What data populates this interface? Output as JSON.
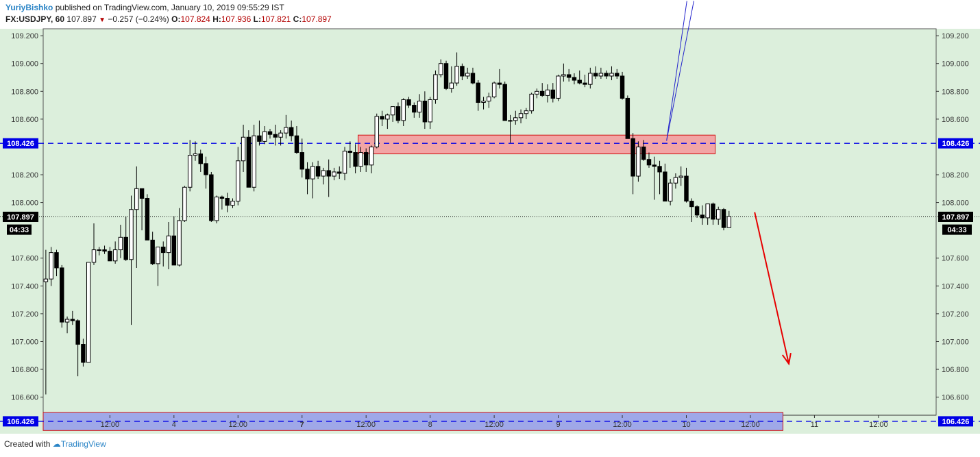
{
  "header": {
    "author": "YuriyBishko",
    "published_text": "published on TradingView.com, January 10, 2019 09:55:29 IST",
    "symbol": "FX:USDJPY, 60",
    "last": "107.897",
    "change": "−0.257 (−0.24%)",
    "o_label": "O:",
    "o": "107.824",
    "h_label": "H:",
    "h": "107.936",
    "l_label": "L:",
    "l": "107.821",
    "c_label": "C:",
    "c": "107.897"
  },
  "footer": {
    "created_with": "Created with",
    "brand": "TradingView"
  },
  "colors": {
    "plot_bg": "#dcefdc",
    "resistance_line": "#0000e6",
    "resistance_zone": "#f2a5a5",
    "support_zone": "#9fa8e8",
    "arrow": "#e60000",
    "up_line": "#2222cc",
    "tag_blue": "#0000e6",
    "tag_black": "#000000"
  },
  "chart_data": {
    "type": "candlestick",
    "symbol": "FX:USDJPY",
    "timeframe": "60",
    "ylim": [
      106.47,
      109.25
    ],
    "y_ticks": [
      "109.200",
      "109.000",
      "108.800",
      "108.600",
      "108.200",
      "108.000",
      "107.600",
      "107.400",
      "107.200",
      "107.000",
      "106.800",
      "106.600"
    ],
    "y_tick_values": [
      109.2,
      109.0,
      108.8,
      108.6,
      108.2,
      108.0,
      107.6,
      107.4,
      107.2,
      107.0,
      106.8,
      106.6
    ],
    "x_tick_labels": [
      "12:00",
      "4",
      "12:00",
      "7",
      "12:00",
      "8",
      "12:00",
      "9",
      "12:00",
      "10",
      "12:00",
      "11",
      "12:00"
    ],
    "x_tick_hours": [
      12,
      24,
      36,
      48,
      60,
      72,
      84,
      96,
      108,
      120,
      132,
      144,
      156
    ],
    "x_bold": [
      "7"
    ],
    "xlim_hours": [
      -0.5,
      166.8
    ],
    "levels": [
      {
        "label": "108.426",
        "value": 108.426,
        "style": "dashed"
      },
      {
        "label": "106.426",
        "value": 106.426,
        "style": "dashed"
      }
    ],
    "last_price": {
      "label": "107.897",
      "value": 107.897
    },
    "countdown": {
      "label": "04:33",
      "value": 107.81
    },
    "zones": [
      {
        "name": "resistance-zone",
        "from_hour": 58.5,
        "to_hour": 125.4,
        "low": 108.35,
        "high": 108.485
      },
      {
        "name": "support-zone",
        "from_hour": -0.5,
        "to_hour": 138.1,
        "low": 106.36,
        "high": 106.49
      }
    ],
    "annotations": [
      {
        "type": "arrow",
        "name": "forecast-arrow",
        "from": [
          132.8,
          107.93
        ],
        "to": [
          139.2,
          106.84
        ]
      },
      {
        "type": "line",
        "name": "trend-line-1",
        "from": [
          116.3,
          108.445
        ],
        "to": [
          121.4,
          109.45
        ]
      },
      {
        "type": "line",
        "name": "trend-line-2",
        "from": [
          116.3,
          108.445
        ],
        "to": [
          120.1,
          109.45
        ]
      }
    ],
    "candles": [
      [
        0.0,
        107.43,
        107.66,
        106.62,
        107.45
      ],
      [
        1.0,
        107.45,
        107.68,
        107.4,
        107.64
      ],
      [
        2.0,
        107.64,
        107.66,
        107.47,
        107.53
      ],
      [
        3.0,
        107.53,
        107.55,
        107.1,
        107.14
      ],
      [
        4.0,
        107.14,
        107.18,
        107.06,
        107.16
      ],
      [
        5.0,
        107.16,
        107.22,
        107.12,
        107.15
      ],
      [
        6.0,
        107.15,
        107.16,
        106.75,
        106.98
      ],
      [
        7.0,
        106.98,
        107.02,
        106.82,
        106.85
      ],
      [
        8.0,
        106.85,
        107.57,
        106.85,
        107.57
      ],
      [
        9.0,
        107.57,
        107.85,
        107.55,
        107.66
      ],
      [
        10.0,
        107.66,
        107.68,
        107.62,
        107.66
      ],
      [
        11.0,
        107.66,
        107.69,
        107.63,
        107.65
      ],
      [
        12.0,
        107.65,
        107.68,
        107.58,
        107.58
      ],
      [
        13.0,
        107.58,
        107.72,
        107.56,
        107.66
      ],
      [
        14.0,
        107.66,
        107.84,
        107.6,
        107.75
      ],
      [
        15.0,
        107.75,
        107.9,
        107.58,
        107.59
      ],
      [
        16.0,
        107.59,
        108.05,
        107.12,
        107.95
      ],
      [
        17.0,
        107.95,
        108.26,
        107.53,
        108.1
      ],
      [
        18.0,
        108.1,
        108.1,
        107.8,
        108.03
      ],
      [
        19.0,
        108.03,
        108.06,
        107.73,
        107.73
      ],
      [
        20.0,
        107.73,
        107.79,
        107.55,
        107.56
      ],
      [
        21.0,
        107.56,
        107.66,
        107.4,
        107.68
      ],
      [
        22.0,
        107.68,
        107.72,
        107.54,
        107.64
      ],
      [
        23.0,
        107.64,
        107.86,
        107.52,
        107.76
      ],
      [
        24.0,
        107.76,
        107.9,
        107.55,
        107.55
      ],
      [
        25.0,
        107.55,
        107.96,
        107.54,
        107.87
      ],
      [
        26.0,
        107.87,
        108.12,
        107.86,
        108.11
      ],
      [
        27.0,
        108.11,
        108.45,
        108.08,
        108.34
      ],
      [
        28.0,
        108.34,
        108.44,
        108.3,
        108.35
      ],
      [
        29.0,
        108.35,
        108.38,
        108.22,
        108.28
      ],
      [
        30.0,
        108.28,
        108.33,
        108.1,
        108.2
      ],
      [
        31.0,
        108.2,
        108.22,
        107.86,
        107.87
      ],
      [
        32.0,
        107.87,
        108.05,
        107.85,
        108.04
      ],
      [
        33.0,
        108.04,
        108.05,
        107.95,
        108.03
      ],
      [
        34.0,
        108.03,
        108.07,
        107.93,
        107.98
      ],
      [
        35.0,
        107.98,
        108.03,
        107.96,
        108.01
      ],
      [
        36.0,
        108.01,
        108.4,
        107.98,
        108.3
      ],
      [
        37.0,
        108.3,
        108.56,
        108.22,
        108.47
      ],
      [
        38.0,
        108.47,
        108.52,
        108.11,
        108.11
      ],
      [
        39.0,
        108.11,
        108.56,
        108.08,
        108.48
      ],
      [
        40.0,
        108.48,
        108.59,
        108.41,
        108.44
      ],
      [
        41.0,
        108.44,
        108.55,
        108.42,
        108.51
      ],
      [
        42.0,
        108.51,
        108.53,
        108.46,
        108.49
      ],
      [
        43.0,
        108.49,
        108.56,
        108.41,
        108.47
      ],
      [
        44.0,
        108.47,
        108.52,
        108.41,
        108.5
      ],
      [
        45.0,
        108.5,
        108.63,
        108.46,
        108.54
      ],
      [
        46.0,
        108.54,
        108.59,
        108.44,
        108.48
      ],
      [
        47.0,
        108.48,
        108.55,
        108.35,
        108.36
      ],
      [
        48.0,
        108.36,
        108.46,
        108.18,
        108.24
      ],
      [
        49.0,
        108.24,
        108.29,
        108.06,
        108.17
      ],
      [
        50.0,
        108.17,
        108.29,
        108.03,
        108.26
      ],
      [
        51.0,
        108.26,
        108.3,
        108.17,
        108.19
      ],
      [
        52.0,
        108.19,
        108.25,
        108.13,
        108.23
      ],
      [
        53.0,
        108.23,
        108.31,
        108.04,
        108.19
      ],
      [
        54.0,
        108.19,
        108.25,
        108.16,
        108.22
      ],
      [
        55.0,
        108.22,
        108.26,
        108.17,
        108.21
      ],
      [
        56.0,
        108.21,
        108.4,
        108.16,
        108.37
      ],
      [
        57.0,
        108.37,
        108.44,
        108.25,
        108.36
      ],
      [
        58.0,
        108.36,
        108.42,
        108.21,
        108.26
      ],
      [
        59.0,
        108.26,
        108.4,
        108.22,
        108.36
      ],
      [
        60.0,
        108.36,
        108.39,
        108.22,
        108.27
      ],
      [
        61.0,
        108.27,
        108.41,
        108.21,
        108.4
      ],
      [
        62.0,
        108.4,
        108.64,
        108.39,
        108.62
      ],
      [
        63.0,
        108.62,
        108.66,
        108.55,
        108.6
      ],
      [
        64.0,
        108.6,
        108.64,
        108.53,
        108.63
      ],
      [
        65.0,
        108.63,
        108.69,
        108.58,
        108.69
      ],
      [
        66.0,
        108.69,
        108.72,
        108.57,
        108.59
      ],
      [
        67.0,
        108.59,
        108.75,
        108.55,
        108.74
      ],
      [
        68.0,
        108.74,
        108.76,
        108.68,
        108.7
      ],
      [
        69.0,
        108.7,
        108.72,
        108.61,
        108.65
      ],
      [
        70.0,
        108.65,
        108.78,
        108.61,
        108.73
      ],
      [
        71.0,
        108.73,
        108.8,
        108.53,
        108.58
      ],
      [
        72.0,
        108.58,
        108.76,
        108.53,
        108.74
      ],
      [
        73.0,
        108.74,
        108.95,
        108.71,
        108.92
      ],
      [
        74.0,
        108.92,
        109.03,
        108.9,
        109.0
      ],
      [
        75.0,
        109.0,
        109.02,
        108.81,
        108.82
      ],
      [
        76.0,
        108.82,
        108.98,
        108.79,
        108.86
      ],
      [
        77.0,
        108.86,
        109.08,
        108.84,
        108.98
      ],
      [
        78.0,
        108.98,
        109.0,
        108.88,
        108.91
      ],
      [
        79.0,
        108.91,
        108.97,
        108.89,
        108.93
      ],
      [
        80.0,
        108.93,
        108.97,
        108.85,
        108.86
      ],
      [
        81.0,
        108.86,
        108.88,
        108.66,
        108.72
      ],
      [
        82.0,
        108.72,
        108.76,
        108.67,
        108.73
      ],
      [
        83.0,
        108.73,
        108.79,
        108.68,
        108.76
      ],
      [
        84.0,
        108.76,
        108.87,
        108.75,
        108.86
      ],
      [
        85.0,
        108.86,
        108.96,
        108.82,
        108.85
      ],
      [
        86.0,
        108.85,
        108.87,
        108.59,
        108.59
      ],
      [
        87.0,
        108.59,
        108.63,
        108.43,
        108.59
      ],
      [
        88.0,
        108.59,
        108.66,
        108.56,
        108.61
      ],
      [
        89.0,
        108.61,
        108.67,
        108.57,
        108.64
      ],
      [
        90.0,
        108.64,
        108.68,
        108.6,
        108.66
      ],
      [
        91.0,
        108.66,
        108.79,
        108.64,
        108.78
      ],
      [
        92.0,
        108.78,
        108.82,
        108.75,
        108.8
      ],
      [
        93.0,
        108.8,
        108.86,
        108.76,
        108.77
      ],
      [
        94.0,
        108.77,
        108.85,
        108.72,
        108.81
      ],
      [
        95.0,
        108.81,
        108.86,
        108.72,
        108.75
      ],
      [
        96.0,
        108.75,
        108.92,
        108.73,
        108.91
      ],
      [
        97.0,
        108.91,
        109.0,
        108.87,
        108.92
      ],
      [
        98.0,
        108.92,
        108.96,
        108.87,
        108.9
      ],
      [
        99.0,
        108.9,
        108.93,
        108.85,
        108.88
      ],
      [
        100.0,
        108.88,
        108.95,
        108.85,
        108.86
      ],
      [
        101.0,
        108.86,
        108.92,
        108.83,
        108.85
      ],
      [
        102.0,
        108.85,
        108.97,
        108.82,
        108.93
      ],
      [
        103.0,
        108.93,
        108.98,
        108.89,
        108.91
      ],
      [
        104.0,
        108.91,
        108.97,
        108.89,
        108.93
      ],
      [
        105.0,
        108.93,
        108.95,
        108.89,
        108.91
      ],
      [
        106.0,
        108.91,
        108.98,
        108.88,
        108.93
      ],
      [
        107.0,
        108.93,
        108.96,
        108.89,
        108.91
      ],
      [
        108.0,
        108.91,
        108.94,
        108.74,
        108.75
      ],
      [
        109.0,
        108.75,
        108.77,
        108.46,
        108.46
      ],
      [
        110.0,
        108.46,
        108.5,
        108.06,
        108.19
      ],
      [
        111.0,
        108.19,
        108.44,
        108.15,
        108.4
      ],
      [
        112.0,
        108.4,
        108.45,
        108.3,
        108.31
      ],
      [
        113.0,
        108.31,
        108.36,
        108.25,
        108.27
      ],
      [
        114.0,
        108.27,
        108.33,
        108.02,
        108.26
      ],
      [
        115.0,
        108.26,
        108.3,
        108.06,
        108.22
      ],
      [
        116.0,
        108.22,
        108.28,
        108.01,
        108.01
      ],
      [
        117.0,
        108.01,
        108.17,
        107.98,
        108.14
      ],
      [
        118.0,
        108.14,
        108.21,
        108.1,
        108.18
      ],
      [
        119.0,
        108.18,
        108.26,
        108.12,
        108.19
      ],
      [
        120.0,
        108.19,
        108.25,
        108.0,
        108.01
      ],
      [
        121.0,
        108.01,
        108.03,
        107.86,
        107.97
      ],
      [
        122.0,
        107.97,
        107.98,
        107.89,
        107.91
      ],
      [
        123.0,
        107.91,
        107.98,
        107.84,
        107.89
      ],
      [
        124.0,
        107.89,
        107.99,
        107.84,
        107.99
      ],
      [
        125.0,
        107.99,
        108.0,
        107.84,
        107.88
      ],
      [
        126.0,
        107.88,
        107.97,
        107.84,
        107.95
      ],
      [
        127.0,
        107.95,
        107.96,
        107.8,
        107.82
      ],
      [
        128.0,
        107.82,
        107.94,
        107.82,
        107.9
      ]
    ]
  }
}
